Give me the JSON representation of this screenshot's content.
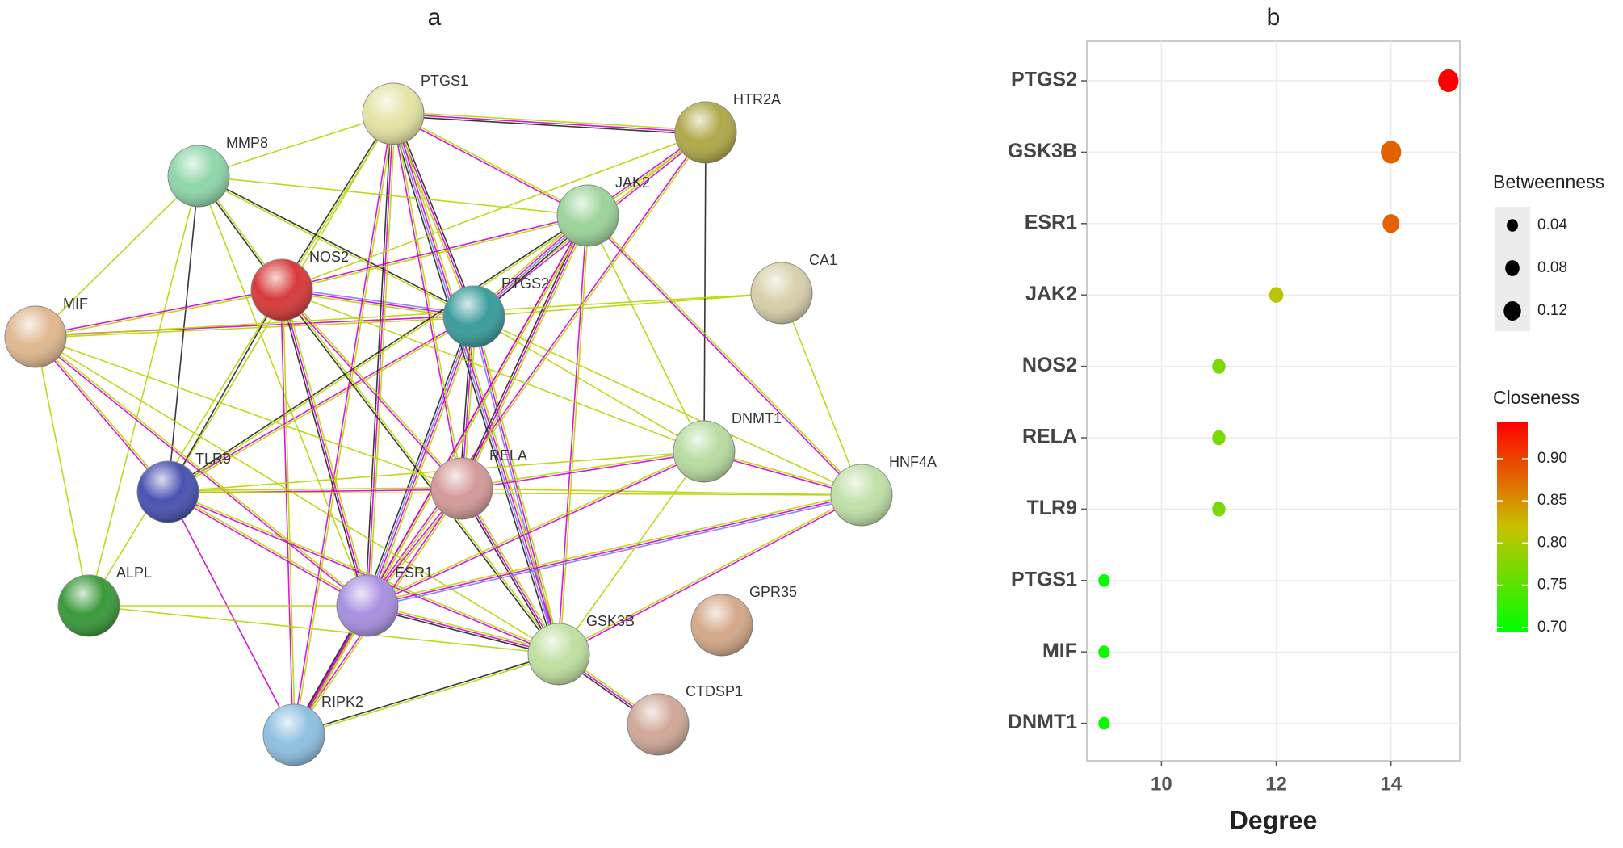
{
  "network": {
    "title": "a",
    "nodes": [
      "PTGS1",
      "HTR2A",
      "MMP8",
      "JAK2",
      "NOS2",
      "PTGS2",
      "CA1",
      "MIF",
      "DNMT1",
      "TLR9",
      "RELA",
      "HNF4A",
      "ALPL",
      "ESR1",
      "GSK3B",
      "GPR35",
      "RIPK2",
      "CTDSP1"
    ]
  },
  "chart_data": {
    "type": "dot",
    "title": "b",
    "x_label": "Degree",
    "categories": [
      "PTGS2",
      "GSK3B",
      "ESR1",
      "JAK2",
      "NOS2",
      "RELA",
      "TLR9",
      "PTGS1",
      "MIF",
      "DNMT1"
    ],
    "values": [
      15,
      14,
      14,
      12,
      11,
      11,
      11,
      9,
      9,
      9
    ],
    "betweenness": [
      0.12,
      0.12,
      0.08,
      0.05,
      0.04,
      0.04,
      0.04,
      0.02,
      0.02,
      0.02
    ],
    "closeness": [
      0.95,
      0.88,
      0.88,
      0.81,
      0.77,
      0.77,
      0.77,
      0.7,
      0.7,
      0.7
    ],
    "xlim": [
      8.7,
      15.2
    ],
    "xticks": [
      10,
      12,
      14
    ],
    "size_legend": {
      "title": "Betweenness",
      "ticks": [
        0.04,
        0.08,
        0.12
      ]
    },
    "color_legend": {
      "title": "Closeness",
      "lim": [
        0.695,
        0.943
      ],
      "colors": [
        "#00ff00",
        "#c8c000",
        "#ff0000"
      ],
      "ticks": [
        {
          "value": 0.7,
          "label": "0.70"
        },
        0.75,
        {
          "value": 0.8,
          "label": "0.80"
        },
        0.85,
        {
          "value": 0.9,
          "label": "0.90"
        }
      ]
    },
    "grid": true
  }
}
